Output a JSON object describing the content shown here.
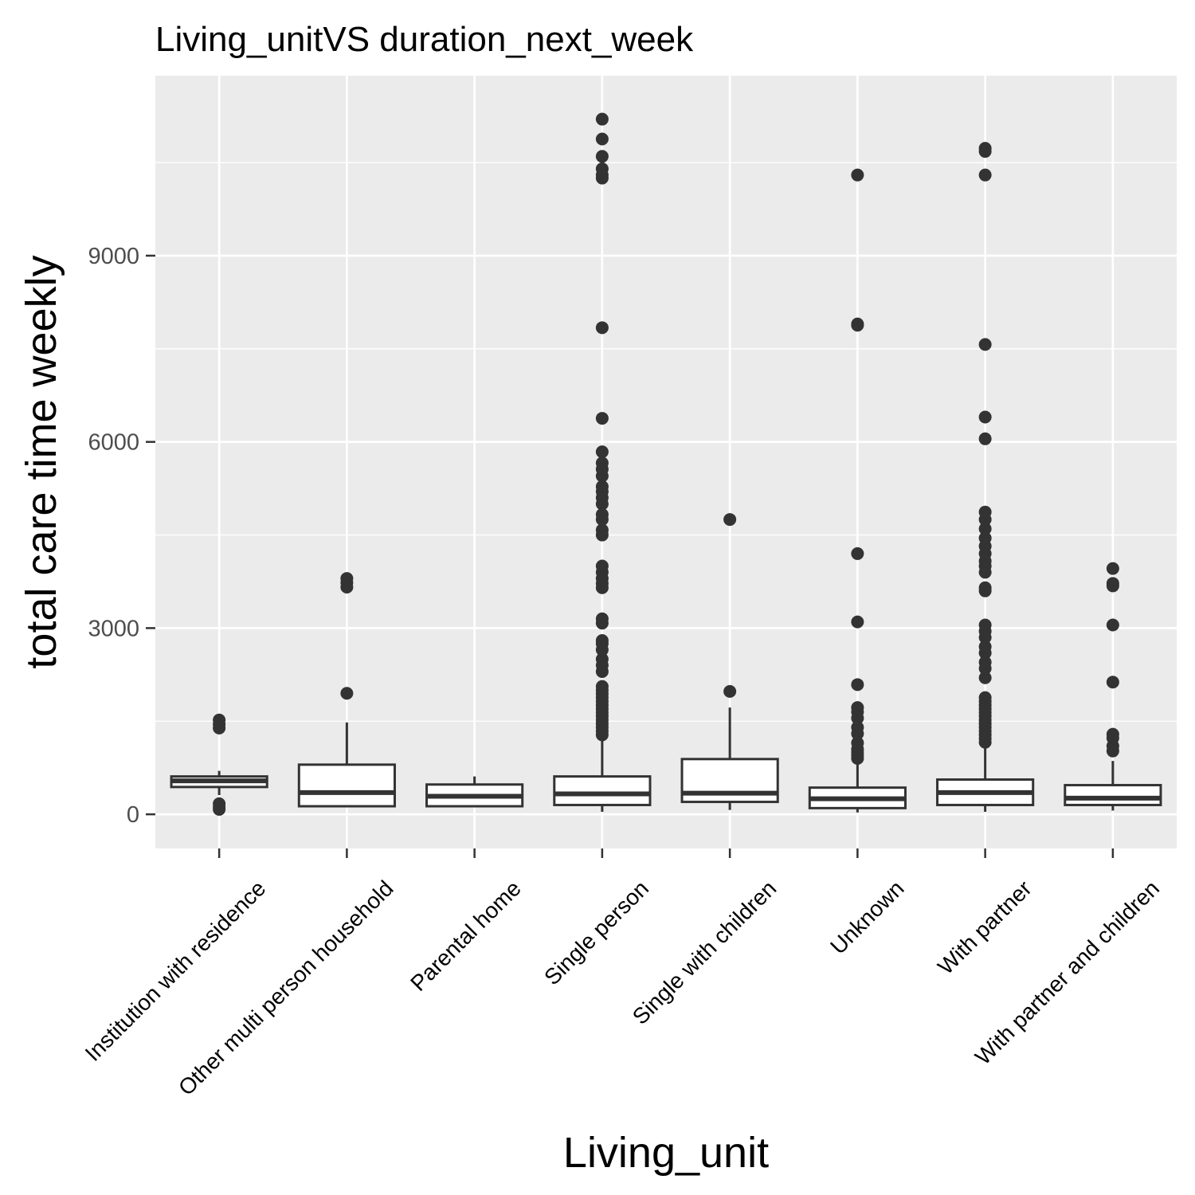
{
  "chart_data": {
    "type": "boxplot",
    "title": "Living_unitVS duration_next_week",
    "xlabel": "Living_unit",
    "ylabel": "total care time weekly",
    "ylim": [
      -550,
      11900
    ],
    "yticks": [
      0,
      3000,
      6000,
      9000
    ],
    "grid": true,
    "colors": {
      "panel": "#ebebeb",
      "grid": "#ffffff",
      "box_fill": "#ffffff",
      "box_line": "#333333",
      "outlier": "#333333"
    },
    "categories": [
      "Institution with residence",
      "Other multi person household",
      "Parental home",
      "Single person",
      "Single with children",
      "Unknown",
      "With partner",
      "With partner and children"
    ],
    "boxes": [
      {
        "category": "Institution with residence",
        "whisker_low": 310,
        "q1": 440,
        "median": 540,
        "q3": 610,
        "whisker_high": 700,
        "outliers": [
          80,
          120,
          170,
          1390,
          1450,
          1520
        ]
      },
      {
        "category": "Other multi person household",
        "whisker_low": 130,
        "q1": 130,
        "median": 350,
        "q3": 800,
        "whisker_high": 1480,
        "outliers": [
          1950,
          3660,
          3730,
          3800
        ]
      },
      {
        "category": "Parental home",
        "whisker_low": 130,
        "q1": 130,
        "median": 290,
        "q3": 480,
        "whisker_high": 610,
        "outliers": []
      },
      {
        "category": "Single person",
        "whisker_low": 40,
        "q1": 150,
        "median": 330,
        "q3": 610,
        "whisker_high": 1230,
        "outliers": [
          1280,
          1340,
          1400,
          1460,
          1520,
          1580,
          1640,
          1700,
          1760,
          1820,
          1880,
          1940,
          2000,
          2060,
          2300,
          2400,
          2500,
          2650,
          2750,
          2800,
          3080,
          3150,
          3650,
          3720,
          3800,
          3900,
          4000,
          4500,
          4580,
          4750,
          4830,
          5000,
          5100,
          5200,
          5280,
          5450,
          5560,
          5660,
          5840,
          6380,
          7840,
          10250,
          10300,
          10400,
          10600,
          10880,
          11200
        ]
      },
      {
        "category": "Single with children",
        "whisker_low": 70,
        "q1": 200,
        "median": 340,
        "q3": 890,
        "whisker_high": 1720,
        "outliers": [
          1980,
          4750
        ]
      },
      {
        "category": "Unknown",
        "whisker_low": 30,
        "q1": 100,
        "median": 250,
        "q3": 430,
        "whisker_high": 850,
        "outliers": [
          900,
          950,
          1000,
          1050,
          1150,
          1300,
          1400,
          1550,
          1650,
          1720,
          2090,
          3100,
          4200,
          7880,
          7900,
          10300
        ]
      },
      {
        "category": "With partner",
        "whisker_low": 40,
        "q1": 150,
        "median": 350,
        "q3": 560,
        "whisker_high": 1120,
        "outliers": [
          1160,
          1220,
          1280,
          1340,
          1400,
          1460,
          1520,
          1580,
          1640,
          1700,
          1760,
          1820,
          1880,
          2200,
          2350,
          2450,
          2600,
          2700,
          2850,
          2950,
          3050,
          3600,
          3650,
          3900,
          4000,
          4080,
          4200,
          4320,
          4450,
          4600,
          4750,
          4870,
          6050,
          6400,
          7570,
          10300,
          10680,
          10730
        ]
      },
      {
        "category": "With partner and children",
        "whisker_low": 60,
        "q1": 150,
        "median": 260,
        "q3": 470,
        "whisker_high": 860,
        "outliers": [
          1020,
          1100,
          1230,
          1290,
          2130,
          3050,
          3680,
          3720,
          3960
        ]
      }
    ]
  }
}
